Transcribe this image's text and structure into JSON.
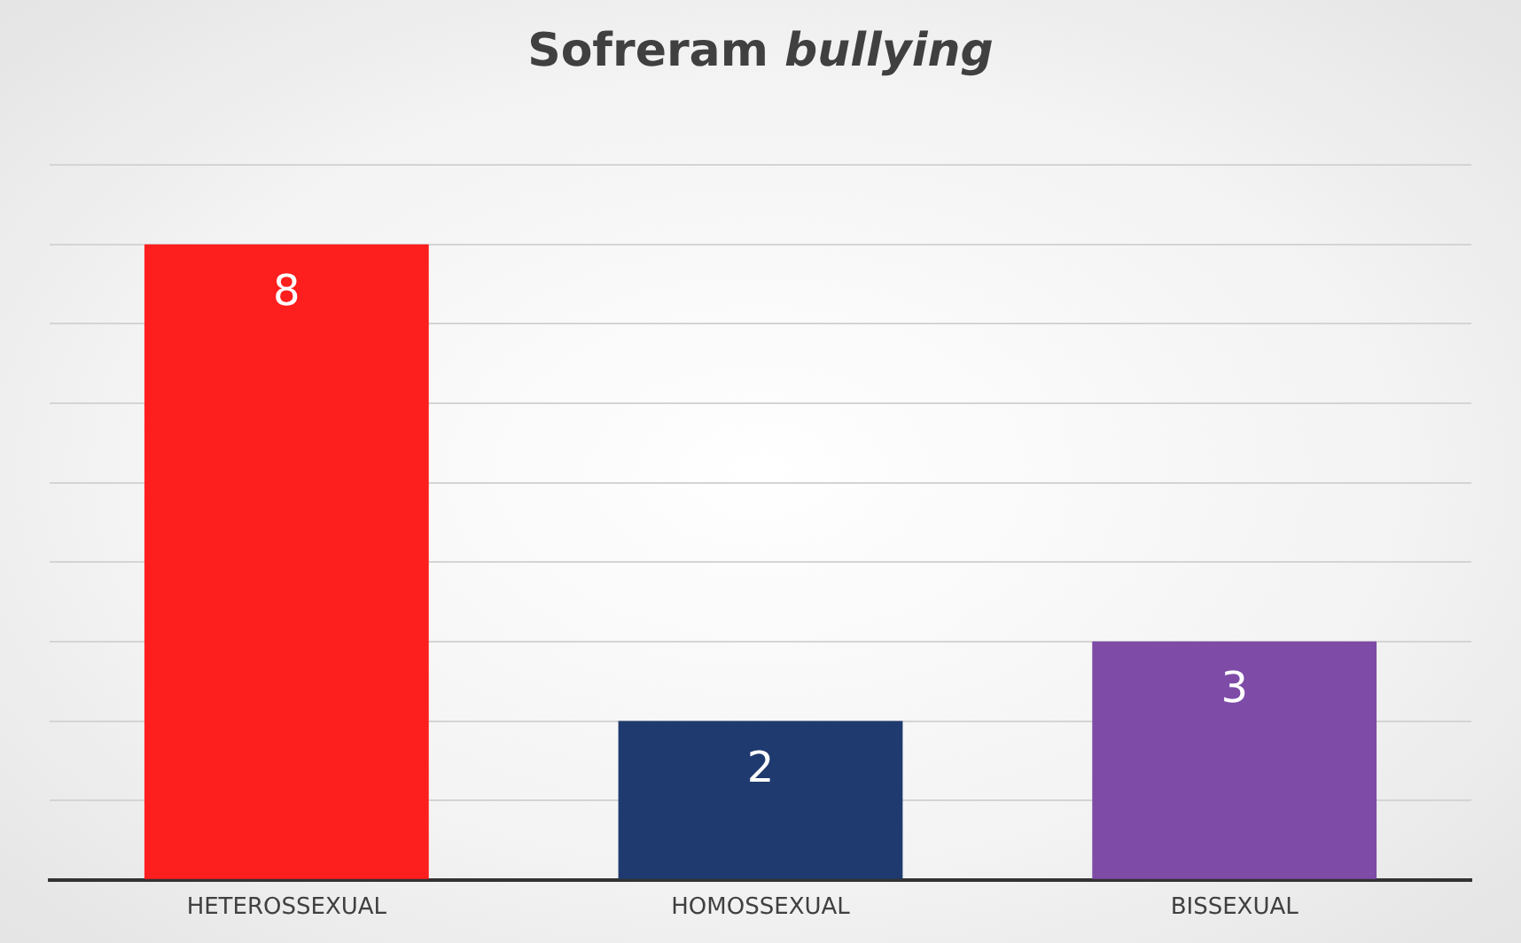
{
  "chart_data": {
    "type": "bar",
    "title": "Sofreram bullying",
    "categories": [
      "HETEROSSEXUAL",
      "HOMOSSEXUAL",
      "BISSEXUAL"
    ],
    "values": [
      8,
      2,
      3
    ],
    "colors": [
      "#fd1e1e",
      "#1f3a6e",
      "#7e4ba7"
    ],
    "ylim": [
      0,
      9
    ],
    "yticks": [
      {
        "value": 0,
        "label": null
      },
      {
        "value": 1,
        "label": null
      },
      {
        "value": 2,
        "label": null
      },
      {
        "value": 3,
        "label": null
      },
      {
        "value": 4,
        "label": null
      },
      {
        "value": 5,
        "label": null
      },
      {
        "value": 6,
        "label": null
      },
      {
        "value": 7,
        "label": null
      },
      {
        "value": 8,
        "label": null
      },
      {
        "value": 9,
        "label": null
      }
    ],
    "grid": "y",
    "tick_labels": "x",
    "data_labels": true,
    "legend": false
  }
}
